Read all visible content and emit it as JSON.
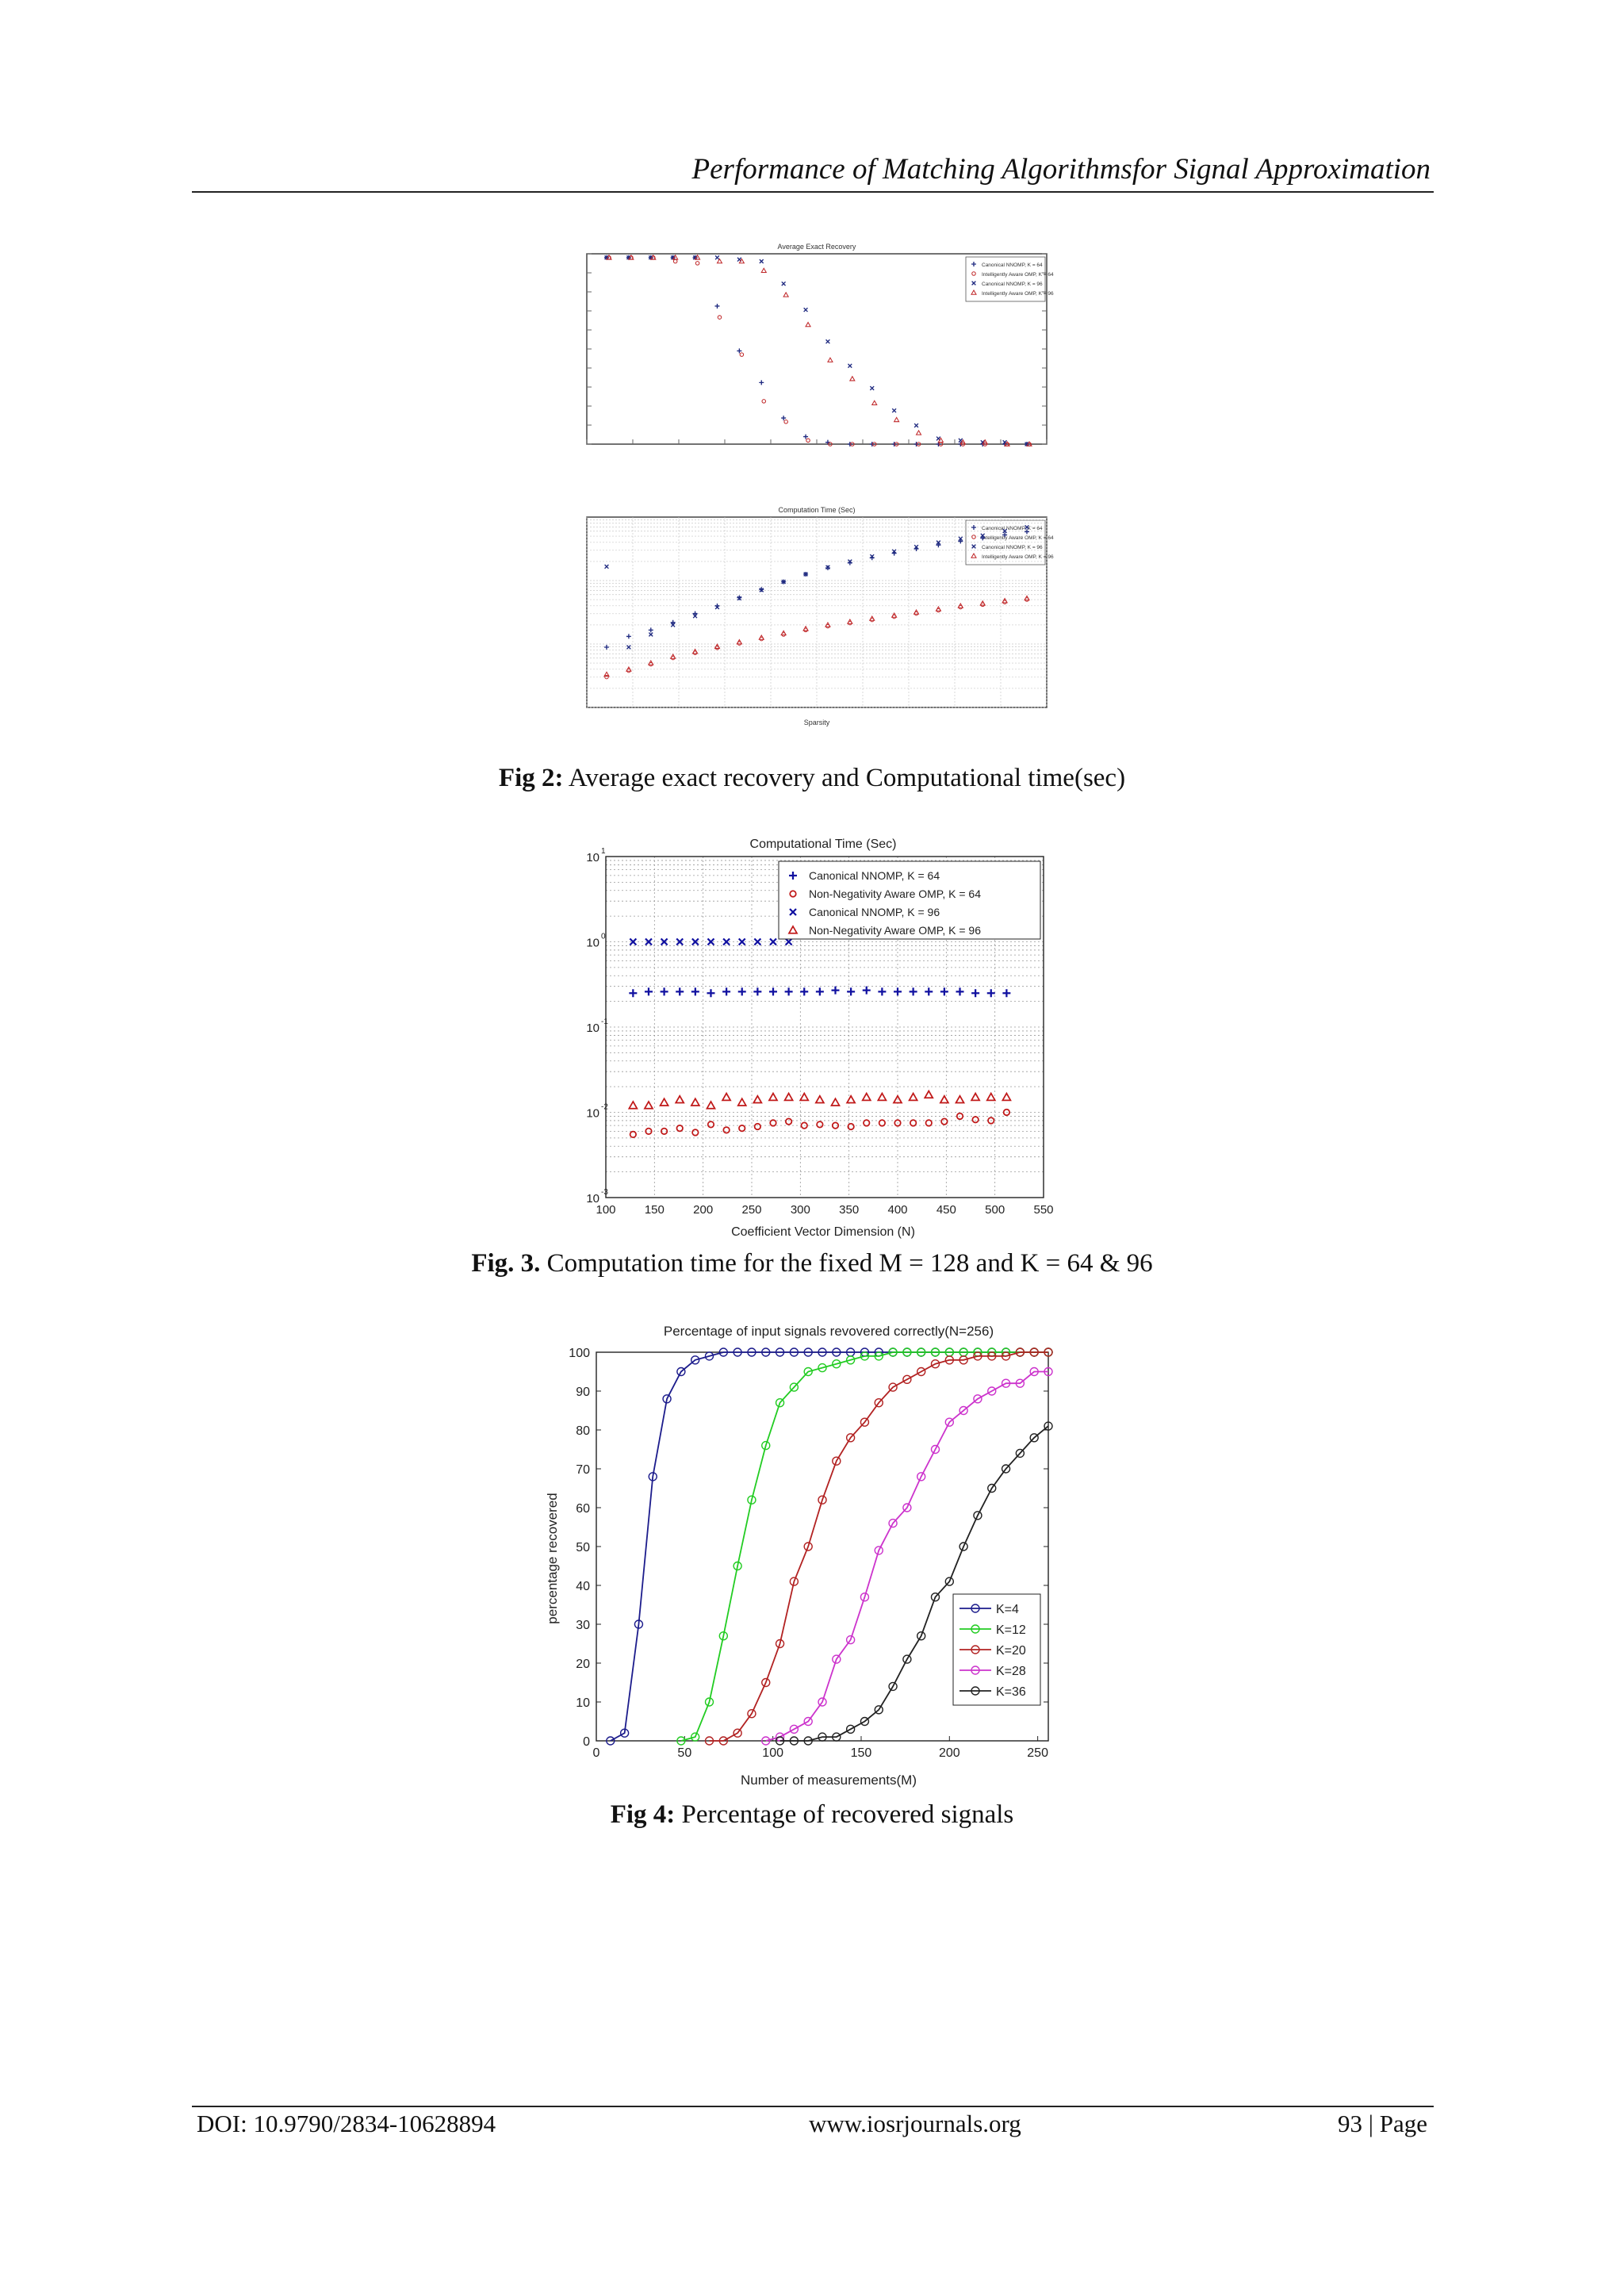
{
  "header": {
    "title": "Performance of Matching Algorithmsfor Signal Approximation"
  },
  "figures": {
    "fig2": {
      "caption_label": "Fig 2:",
      "caption_text": " Average exact recovery and Computational time(sec)",
      "top_title": "Average Exact Recovery",
      "bottom_title": "Computation Time (Sec)",
      "bottom_xlabel": "Sparsity",
      "legend": [
        "Canonical NNOMP, K = 64",
        "Intelligently Aware OMP, K = 64",
        "Canonical NNOMP, K = 96",
        "Intelligently Aware OMP, K = 96"
      ]
    },
    "fig3": {
      "caption_label": "Fig. 3.",
      "caption_text": " Computation time for the fixed M = 128 and K = 64 & 96"
    },
    "fig4": {
      "caption_label": "Fig 4:",
      "caption_text": " Percentage of recovered signals"
    }
  },
  "chart_data": [
    {
      "type": "scatter",
      "id": "fig2-top",
      "title": "Average Exact Recovery",
      "ylim": [
        0,
        1
      ],
      "series": [
        {
          "name": "Canonical NNOMP, K = 64",
          "color": "#1f2a80",
          "marker": "plus",
          "values": [
            1,
            1,
            1,
            1,
            1,
            0.74,
            0.5,
            0.33,
            0.14,
            0.04,
            0.01,
            0,
            0,
            0,
            0,
            0,
            0,
            0,
            0,
            0
          ]
        },
        {
          "name": "Intelligently Aware OMP, K = 64",
          "color": "#c0282a",
          "marker": "circle",
          "values": [
            1,
            1,
            1,
            0.98,
            0.97,
            0.68,
            0.48,
            0.23,
            0.12,
            0.02,
            0,
            0,
            0,
            0,
            0,
            0,
            0,
            0,
            0,
            0
          ]
        },
        {
          "name": "Canonical NNOMP, K = 96",
          "color": "#1f2a80",
          "marker": "x",
          "values": [
            1,
            1,
            1,
            1,
            1,
            1,
            0.99,
            0.98,
            0.86,
            0.72,
            0.55,
            0.42,
            0.3,
            0.18,
            0.1,
            0.03,
            0.02,
            0.01,
            0.01,
            0
          ]
        },
        {
          "name": "Intelligently Aware OMP, K = 96",
          "color": "#c0282a",
          "marker": "triangle",
          "values": [
            1,
            1,
            1,
            1,
            1,
            0.98,
            0.98,
            0.93,
            0.8,
            0.64,
            0.45,
            0.35,
            0.22,
            0.13,
            0.06,
            0.02,
            0.01,
            0.01,
            0,
            0
          ]
        }
      ]
    },
    {
      "type": "scatter",
      "id": "fig2-bottom",
      "title": "Computation Time (Sec)",
      "xlabel": "Sparsity",
      "ylim_log10": [
        -2,
        1
      ],
      "series": [
        {
          "name": "Canonical NNOMP, K = 64",
          "color": "#1f2a80",
          "marker": "plus",
          "values": [
            -1.05,
            -0.88,
            -0.78,
            -0.66,
            -0.52,
            -0.4,
            -0.27,
            -0.14,
            -0.02,
            0.1,
            0.2,
            0.28,
            0.36,
            0.43,
            0.5,
            0.56,
            0.62,
            0.67,
            0.72,
            0.77
          ]
        },
        {
          "name": "Intelligently Aware OMP, K = 64",
          "color": "#c0282a",
          "marker": "circle",
          "values": [
            -1.52,
            -1.42,
            -1.32,
            -1.22,
            -1.14,
            -1.06,
            -0.99,
            -0.92,
            -0.85,
            -0.78,
            -0.72,
            -0.67,
            -0.62,
            -0.57,
            -0.52,
            -0.47,
            -0.42,
            -0.38,
            -0.34,
            -0.3
          ]
        },
        {
          "name": "Canonical NNOMP, K = 96",
          "color": "#1f2a80",
          "marker": "x",
          "values": [
            0.22,
            -1.05,
            -0.85,
            -0.7,
            -0.56,
            -0.42,
            -0.28,
            -0.15,
            -0.02,
            0.1,
            0.21,
            0.3,
            0.38,
            0.46,
            0.53,
            0.6,
            0.66,
            0.71,
            0.78,
            0.84
          ]
        },
        {
          "name": "Intelligently Aware OMP, K = 96",
          "color": "#c0282a",
          "marker": "triangle",
          "values": [
            -1.48,
            -1.4,
            -1.3,
            -1.2,
            -1.12,
            -1.04,
            -0.97,
            -0.9,
            -0.83,
            -0.76,
            -0.7,
            -0.65,
            -0.6,
            -0.55,
            -0.5,
            -0.45,
            -0.4,
            -0.36,
            -0.32,
            -0.28
          ]
        }
      ]
    },
    {
      "type": "scatter",
      "id": "fig3",
      "title": "Computational Time (Sec)",
      "xlabel": "Coefficient Vector Dimension (N)",
      "ylabel": "",
      "xlim": [
        100,
        550
      ],
      "ylim_log10": [
        -3,
        1
      ],
      "xticks": [
        100,
        150,
        200,
        250,
        300,
        350,
        400,
        450,
        500,
        550
      ],
      "ytick_labels": [
        "10",
        "0",
        "-1",
        "-2",
        "-3"
      ],
      "x": [
        128,
        144,
        160,
        176,
        192,
        208,
        224,
        240,
        256,
        272,
        288,
        304,
        320,
        336,
        352,
        368,
        384,
        400,
        416,
        432,
        448,
        464,
        480,
        496,
        512
      ],
      "series": [
        {
          "name": "Canonical NNOMP, K = 64",
          "color": "#1010a0",
          "marker": "plus",
          "values": [
            0.25,
            0.26,
            0.26,
            0.26,
            0.26,
            0.25,
            0.26,
            0.26,
            0.26,
            0.26,
            0.26,
            0.26,
            0.26,
            0.27,
            0.26,
            0.27,
            0.26,
            0.26,
            0.26,
            0.26,
            0.26,
            0.26,
            0.25,
            0.25,
            0.25
          ]
        },
        {
          "name": "Non-Negativity Aware OMP, K = 64",
          "color": "#c01818",
          "marker": "circle",
          "values": [
            0.0055,
            0.006,
            0.006,
            0.0065,
            0.0058,
            0.0072,
            0.0062,
            0.0065,
            0.0068,
            0.0075,
            0.0078,
            0.007,
            0.0072,
            0.007,
            0.0068,
            0.0075,
            0.0075,
            0.0075,
            0.0075,
            0.0075,
            0.0078,
            0.009,
            0.0082,
            0.008,
            0.01
          ]
        },
        {
          "name": "Canonical NNOMP, K = 96",
          "color": "#1010a0",
          "marker": "x",
          "x": [
            128,
            144,
            160,
            176,
            192,
            208,
            224,
            240,
            256,
            272,
            288
          ],
          "values": [
            1,
            1,
            1,
            1,
            1,
            1,
            1,
            1,
            1,
            1,
            1
          ]
        },
        {
          "name": "Non-Negativity Aware OMP, K = 96",
          "color": "#c01818",
          "marker": "triangle",
          "values": [
            0.012,
            0.012,
            0.013,
            0.014,
            0.013,
            0.012,
            0.015,
            0.013,
            0.014,
            0.015,
            0.015,
            0.015,
            0.014,
            0.013,
            0.014,
            0.015,
            0.015,
            0.014,
            0.015,
            0.016,
            0.014,
            0.014,
            0.015,
            0.015,
            0.015
          ]
        }
      ],
      "legend": [
        "Canonical NNOMP, K = 64",
        "Non-Negativity Aware OMP, K = 64",
        "Canonical NNOMP, K = 96",
        "Non-Negativity Aware OMP, K = 96"
      ]
    },
    {
      "type": "line",
      "id": "fig4",
      "title": "Percentage of input signals revovered correctly(N=256)",
      "xlabel": "Number of measurements(M)",
      "ylabel": "percentage recovered",
      "xlim": [
        0,
        256
      ],
      "ylim": [
        0,
        100
      ],
      "xticks": [
        0,
        50,
        100,
        150,
        200,
        250
      ],
      "yticks": [
        0,
        10,
        20,
        30,
        40,
        50,
        60,
        70,
        80,
        90,
        100
      ],
      "series": [
        {
          "name": "K=4",
          "color": "#1c1c8c",
          "x": [
            8,
            16,
            24,
            32,
            40,
            48,
            56,
            64,
            72,
            80,
            88,
            96,
            104,
            112,
            120,
            128,
            136,
            144,
            152,
            160,
            168,
            176,
            184,
            192,
            200,
            208,
            216,
            224,
            232,
            240,
            248,
            256
          ],
          "values": [
            0,
            2,
            30,
            68,
            88,
            95,
            98,
            99,
            100,
            100,
            100,
            100,
            100,
            100,
            100,
            100,
            100,
            100,
            100,
            100,
            100,
            100,
            100,
            100,
            100,
            100,
            100,
            100,
            100,
            100,
            100,
            100
          ]
        },
        {
          "name": "K=12",
          "color": "#22cc22",
          "x": [
            48,
            56,
            64,
            72,
            80,
            88,
            96,
            104,
            112,
            120,
            128,
            136,
            144,
            152,
            160,
            168,
            176,
            184,
            192,
            200,
            208,
            216,
            224,
            232,
            240,
            248,
            256
          ],
          "values": [
            0,
            1,
            10,
            27,
            45,
            62,
            76,
            87,
            91,
            95,
            96,
            97,
            98,
            99,
            99,
            100,
            100,
            100,
            100,
            100,
            100,
            100,
            100,
            100,
            100,
            100,
            100
          ]
        },
        {
          "name": "K=20",
          "color": "#b22222",
          "x": [
            64,
            72,
            80,
            88,
            96,
            104,
            112,
            120,
            128,
            136,
            144,
            152,
            160,
            168,
            176,
            184,
            192,
            200,
            208,
            216,
            224,
            232,
            240,
            248,
            256
          ],
          "values": [
            0,
            0,
            2,
            7,
            15,
            25,
            41,
            50,
            62,
            72,
            78,
            82,
            87,
            91,
            93,
            95,
            97,
            98,
            98,
            99,
            99,
            99,
            100,
            100,
            100
          ]
        },
        {
          "name": "K=28",
          "color": "#cc33cc",
          "x": [
            96,
            104,
            112,
            120,
            128,
            136,
            144,
            152,
            160,
            168,
            176,
            184,
            192,
            200,
            208,
            216,
            224,
            232,
            240,
            248,
            256
          ],
          "values": [
            0,
            1,
            3,
            5,
            10,
            21,
            26,
            37,
            49,
            56,
            60,
            68,
            75,
            82,
            85,
            88,
            90,
            92,
            92,
            95,
            95
          ]
        },
        {
          "name": "K=36",
          "color": "#222222",
          "x": [
            104,
            112,
            120,
            128,
            136,
            144,
            152,
            160,
            168,
            176,
            184,
            192,
            200,
            208,
            216,
            224,
            232,
            240,
            248,
            256
          ],
          "values": [
            0,
            0,
            0,
            1,
            1,
            3,
            5,
            8,
            14,
            21,
            27,
            37,
            41,
            50,
            58,
            65,
            70,
            74,
            78,
            81
          ]
        }
      ]
    }
  ],
  "footer": {
    "doi": "DOI: 10.9790/2834-10628894",
    "site": "www.iosrjournals.org",
    "page": "93 | Page"
  }
}
